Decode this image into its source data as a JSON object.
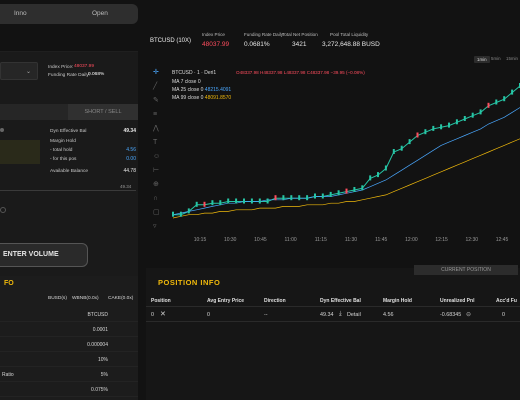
{
  "top_tabs": {
    "inno": "Inno",
    "open": "Open"
  },
  "left": {
    "index_price_label": "Index Price:",
    "index_price_value": "48037.99",
    "funding_rate_label": "Funding Rate Daily:",
    "funding_rate_value": "0.068%",
    "sell_tab": "SHORT / SELL",
    "dyn_eff_bal_label": "Dyn Effective Bal",
    "dyn_eff_bal_value": "49.34",
    "margin_hold_label": "Margin Hold",
    "total_hold_label": "- total hold",
    "total_hold_value": "4.56",
    "for_this_pos_label": "- for this pos",
    "for_this_pos_value": "0.00",
    "available_balance_label": "Available Balance",
    "available_balance_value": "44.78",
    "slider_value": "49.34",
    "enter_volume": "ENTER VOLUME",
    "info_title": "FO",
    "col_headers": [
      "BUSD(s)",
      "WBNB(0.0x)",
      "CAKE(0.0x)"
    ],
    "rows": [
      {
        "label": "",
        "value": "BTCUSD"
      },
      {
        "label": "",
        "value": "0.0001"
      },
      {
        "label": "",
        "value": "0.000004"
      },
      {
        "label": "",
        "value": "10%"
      },
      {
        "label": "Ratio",
        "value": "5%"
      },
      {
        "label": "",
        "value": "0.075%"
      }
    ]
  },
  "chart_header": {
    "symbol": "BTCUSD (10X)",
    "index_price_label": "Index Price",
    "index_price_value": "48037.99",
    "funding_label": "Funding Rate Daily",
    "funding_value": "0.0681%",
    "net_position_label": "Total Net Position",
    "net_position_value": "3421",
    "pool_liq_label": "Pool Total Liquidity",
    "pool_liq_value": "3,272,648.88 BUSD"
  },
  "timeframes": [
    "1min",
    "5min",
    "15min"
  ],
  "chart_data": {
    "type": "line",
    "title": "BTCUSD · 1 · Deri1",
    "ohlc_text": "O48337.98 H48337.98 L48337.98 C48337.98 −39.95 (−0.08%)",
    "legend": [
      {
        "name": "MA 7 close 0",
        "value": "",
        "color": "#e8e8e8"
      },
      {
        "name": "MA 25 close 0",
        "value": "48215.4091",
        "color": "#4aa8ff"
      },
      {
        "name": "MA 99 close 0",
        "value": "48091.8570",
        "color": "#f0b90b"
      }
    ],
    "x_ticks": [
      "10:15",
      "10:30",
      "10:45",
      "11:00",
      "11:15",
      "11:30",
      "11:45",
      "12:00",
      "12:15",
      "12:30",
      "12:45"
    ],
    "x": [
      0,
      1,
      2,
      3,
      4,
      5,
      6,
      7,
      8,
      9,
      10,
      11,
      12,
      13,
      14,
      15,
      16,
      17,
      18,
      19,
      20,
      21,
      22,
      23,
      24,
      25,
      26,
      27,
      28,
      29,
      30,
      31,
      32,
      33,
      34,
      35,
      36,
      37,
      38,
      39,
      40,
      41,
      42,
      43,
      44
    ],
    "series": [
      {
        "name": "price",
        "color": "#26c6a6",
        "values": [
          2,
          2,
          4,
          8,
          8,
          9,
          9,
          10,
          10,
          10,
          10,
          10,
          10,
          12,
          12,
          12,
          12,
          12,
          13,
          13,
          14,
          15,
          16,
          17,
          18,
          24,
          26,
          30,
          40,
          42,
          46,
          50,
          52,
          54,
          55,
          56,
          58,
          60,
          62,
          64,
          68,
          70,
          72,
          76,
          80
        ]
      },
      {
        "name": "MA 25",
        "color": "#4aa8ff",
        "values": [
          2,
          3,
          4,
          5,
          6,
          7,
          8,
          9,
          9,
          10,
          10,
          10,
          11,
          11,
          11,
          12,
          12,
          12,
          13,
          13,
          13,
          14,
          15,
          16,
          17,
          19,
          21,
          23,
          26,
          29,
          32,
          35,
          38,
          41,
          44,
          46,
          48,
          50,
          52,
          54,
          57,
          59,
          61,
          64,
          67
        ]
      },
      {
        "name": "MA 99",
        "color": "#f0b90b",
        "values": [
          0,
          1,
          2,
          2,
          3,
          3,
          4,
          4,
          5,
          5,
          5,
          6,
          6,
          6,
          7,
          7,
          7,
          8,
          8,
          8,
          9,
          9,
          10,
          10,
          11,
          12,
          13,
          14,
          16,
          18,
          20,
          22,
          24,
          26,
          28,
          30,
          32,
          34,
          36,
          38,
          40,
          42,
          44,
          46,
          48
        ]
      }
    ]
  },
  "position": {
    "title": "POSITION INFO",
    "current_tab": "CURRENT POSITION",
    "headers": [
      "Position",
      "Avg Entry Price",
      "Direction",
      "Dyn Effective Bal",
      "Margin Hold",
      "Unrealized Pnl",
      "Acc'd Fu"
    ],
    "row": {
      "position": "0",
      "avg_entry": "0",
      "direction": "--",
      "dyn_eff_bal": "49.34",
      "detail": "Detail",
      "margin_hold": "4.56",
      "upnl": "-0.68345"
    }
  }
}
